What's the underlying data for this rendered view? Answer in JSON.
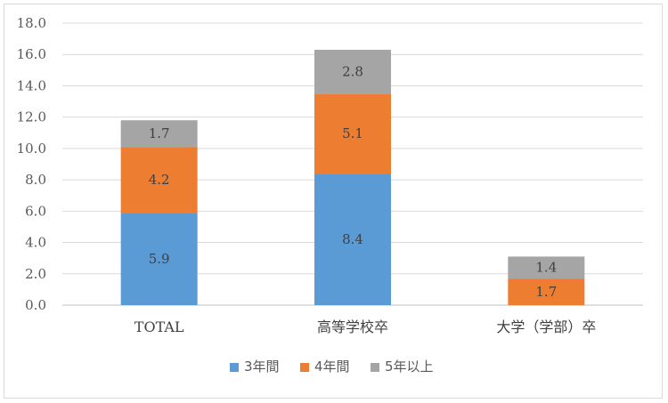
{
  "chart_data": {
    "type": "bar",
    "stacked": true,
    "categories": [
      "TOTAL",
      "高等学校卒",
      "大学（学部）卒"
    ],
    "series": [
      {
        "name": "3年間",
        "color": "#5b9bd5",
        "values": [
          5.9,
          8.4,
          null
        ]
      },
      {
        "name": "4年間",
        "color": "#ed7d31",
        "values": [
          4.2,
          5.1,
          1.7
        ]
      },
      {
        "name": "5年以上",
        "color": "#a5a5a5",
        "values": [
          1.7,
          2.8,
          1.4
        ]
      }
    ],
    "ylim": [
      0,
      18
    ],
    "yticks": [
      "0.0",
      "2.0",
      "4.0",
      "6.0",
      "8.0",
      "10.0",
      "12.0",
      "14.0",
      "16.0",
      "18.0"
    ],
    "grid": true,
    "legend": "bottom"
  }
}
